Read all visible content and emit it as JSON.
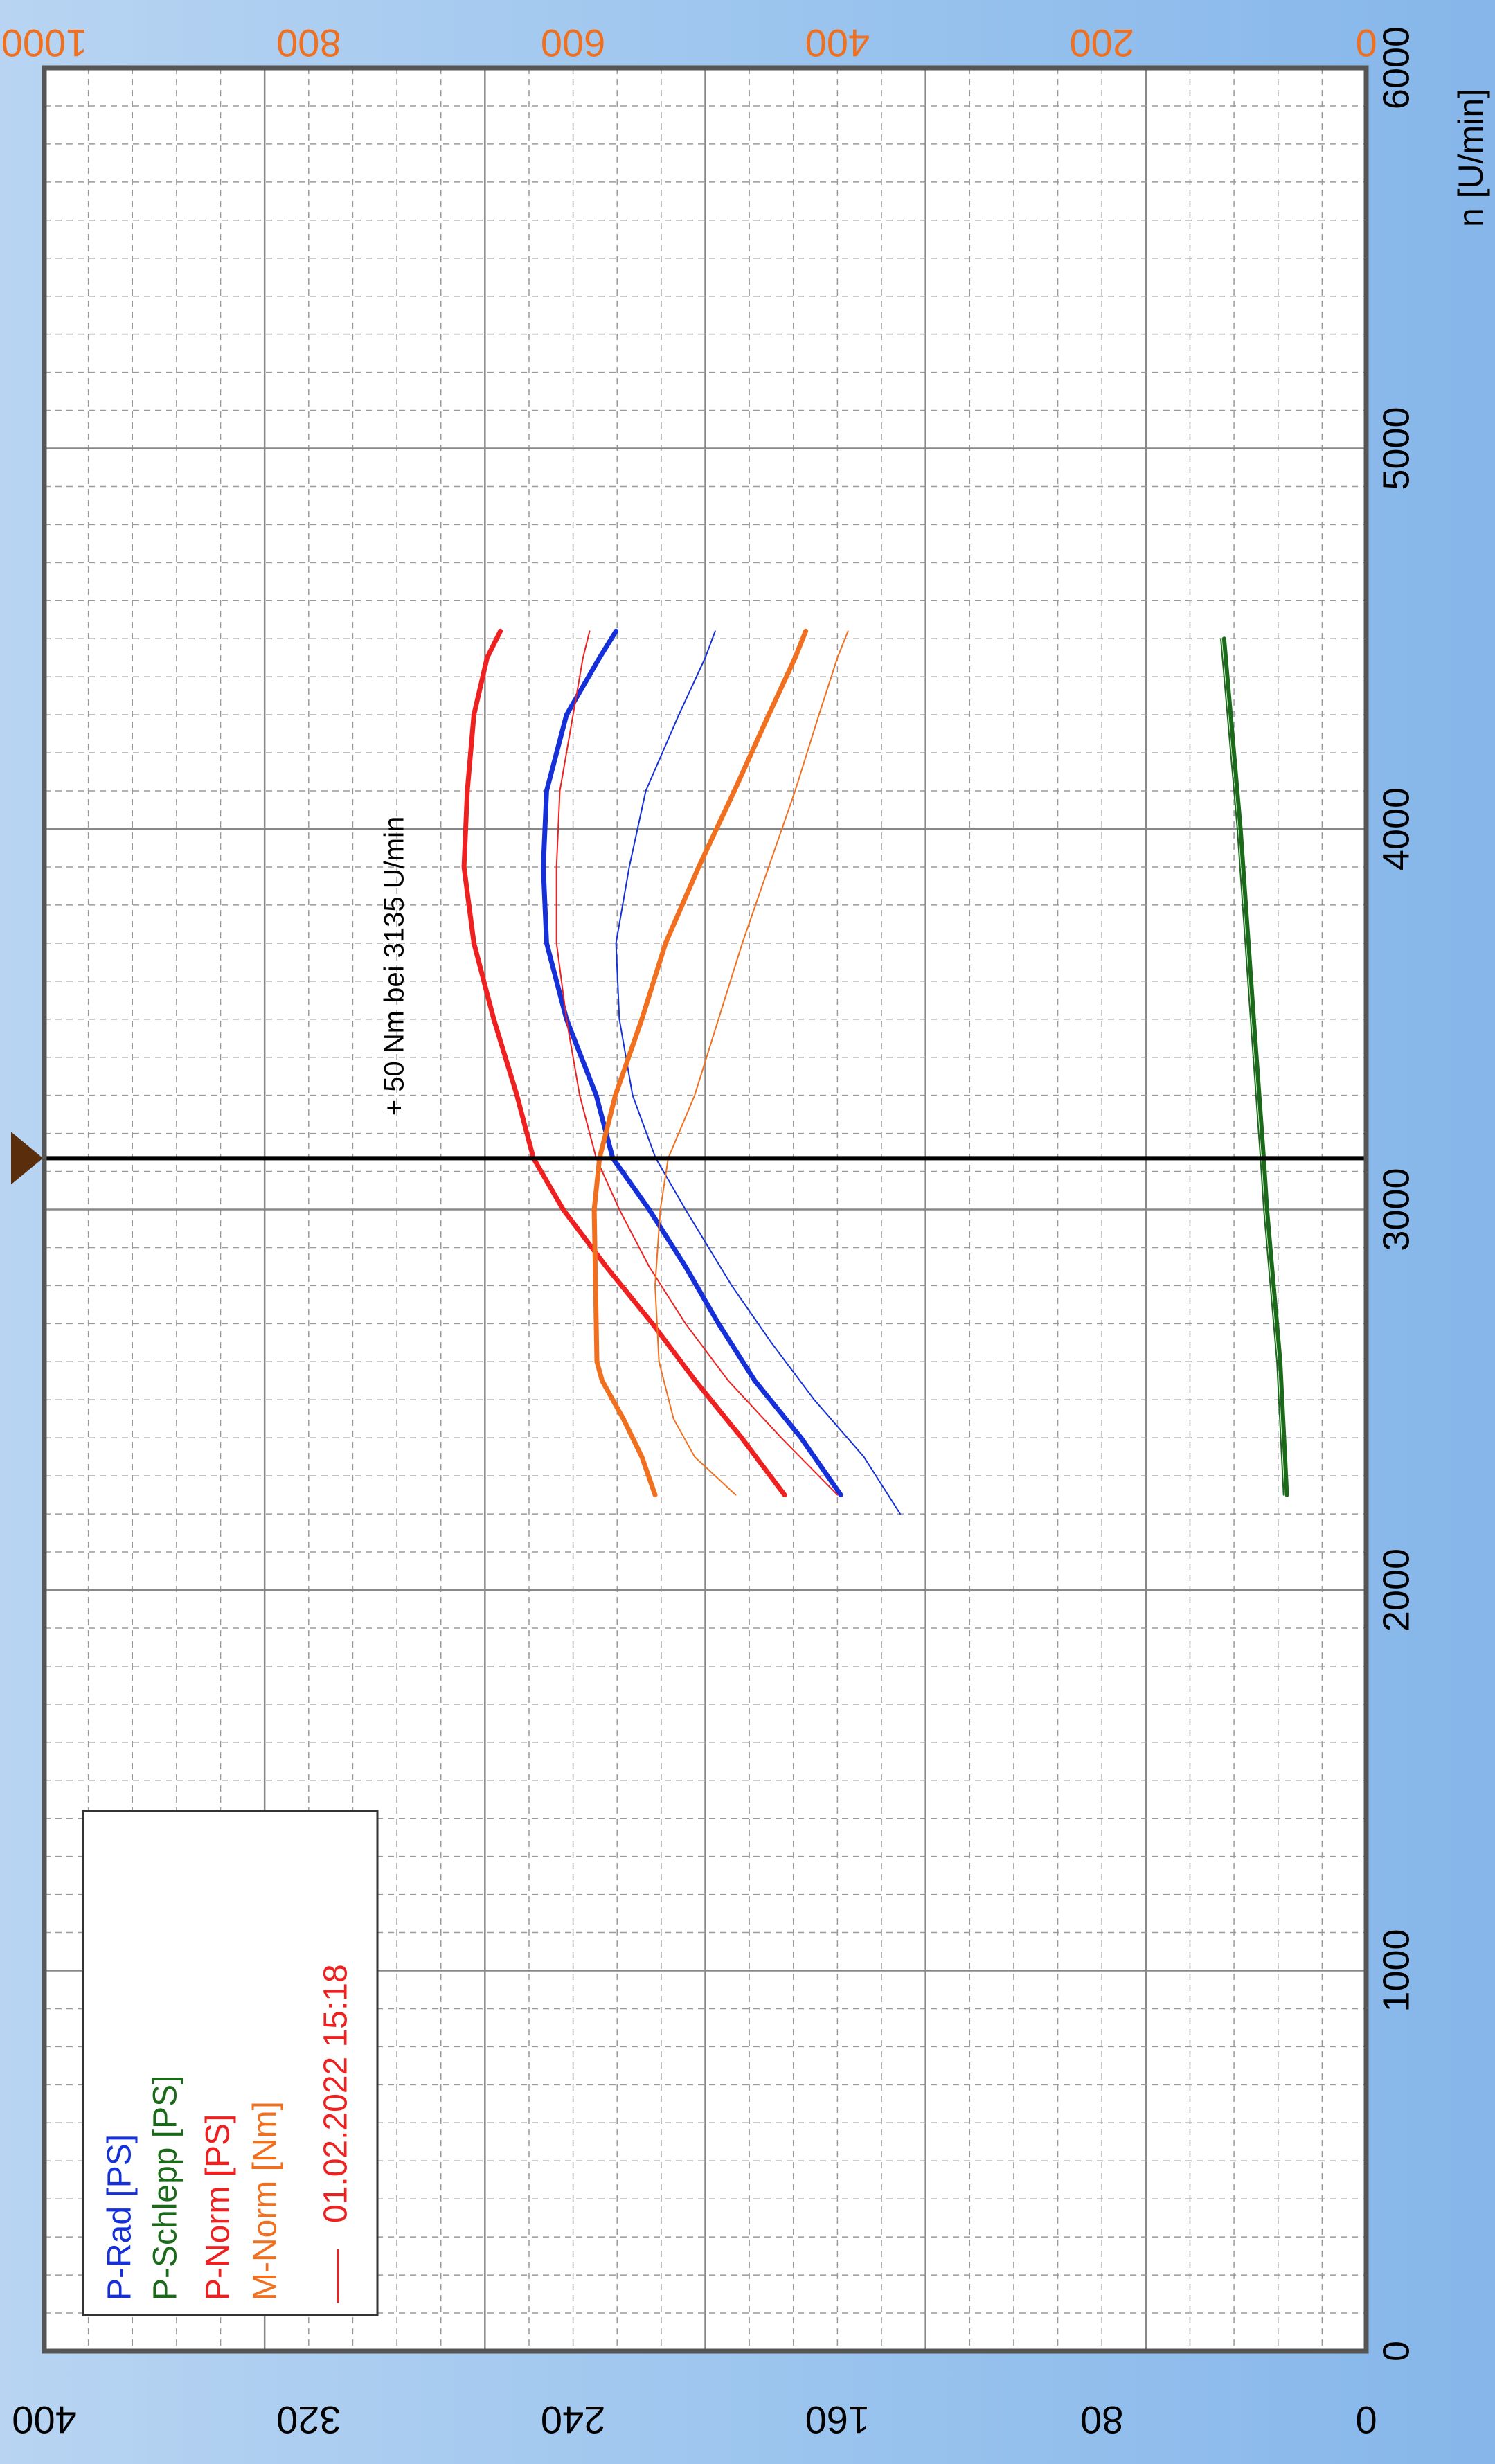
{
  "chart_data": {
    "type": "line",
    "xlabel": "n [U/min]",
    "x_ticks": [
      "0",
      "1000",
      "2000",
      "3000",
      "4000",
      "5000",
      "6000"
    ],
    "xlim": [
      0,
      6000
    ],
    "y_power_ticks": [
      "0",
      "80",
      "160",
      "240",
      "320",
      "400"
    ],
    "y_power_lim": [
      0,
      400
    ],
    "y_torque_ticks": [
      "0",
      "200",
      "400",
      "600",
      "800",
      "1000"
    ],
    "y_torque_lim": [
      0,
      1000
    ],
    "annotation": "+ 50 Nm bei 3135 U/min",
    "cursor_rpm": 3135,
    "grid": true,
    "legend_position": "bottom-left",
    "legend": {
      "entries": [
        {
          "label": "P-Rad [PS]",
          "color": "#1530d8"
        },
        {
          "label": "P-Schlepp [PS]",
          "color": "#1a6a1a"
        },
        {
          "label": "P-Norm [PS]",
          "color": "#ee2020"
        },
        {
          "label": "M-Norm [Nm]",
          "color": "#f07020"
        }
      ],
      "run_label": "01.02.2022 15:18",
      "run_color": "#ee2020"
    },
    "series": [
      {
        "label": "P-Rad [PS]",
        "axis": "power",
        "color": "#1530d8",
        "width": 7,
        "x": [
          2250,
          2400,
          2550,
          2700,
          2850,
          3000,
          3135,
          3300,
          3500,
          3700,
          3900,
          4100,
          4300,
          4450,
          4520
        ],
        "y": [
          159,
          171,
          185,
          196,
          206,
          217,
          228,
          233,
          242,
          248,
          249,
          248,
          242,
          232,
          227
        ]
      },
      {
        "label": "P-Rad [PS]",
        "axis": "power",
        "color": "#1530d8",
        "width": 2,
        "x": [
          2200,
          2350,
          2500,
          2650,
          2800,
          3000,
          3135,
          3300,
          3500,
          3700,
          3900,
          4100,
          4300,
          4450,
          4520
        ],
        "y": [
          141,
          152,
          167,
          180,
          192,
          206,
          215,
          222,
          226,
          227,
          223,
          218,
          208,
          200,
          197
        ]
      },
      {
        "label": "P-Schlepp [PS]",
        "axis": "power",
        "color": "#1a6a1a",
        "width": 6,
        "x": [
          2250,
          2600,
          3000,
          3135,
          3500,
          4000,
          4500
        ],
        "y": [
          24,
          26,
          30,
          31,
          34,
          38,
          43
        ]
      },
      {
        "label": "P-Schlepp [PS]",
        "axis": "power",
        "color": "#1a6a1a",
        "width": 2,
        "x": [
          2250,
          2600,
          3000,
          3135,
          3500,
          4000,
          4500
        ],
        "y": [
          25,
          27,
          31,
          32,
          35,
          39,
          44
        ]
      },
      {
        "label": "P-Norm [PS]",
        "axis": "power",
        "color": "#ee2020",
        "width": 7,
        "x": [
          2250,
          2400,
          2550,
          2700,
          2850,
          3000,
          3135,
          3300,
          3500,
          3700,
          3900,
          4100,
          4300,
          4450,
          4520
        ],
        "y": [
          176,
          189,
          203,
          216,
          230,
          243,
          252,
          257,
          264,
          270,
          273,
          272,
          270,
          266,
          262
        ]
      },
      {
        "label": "P-Norm [PS]",
        "axis": "power",
        "color": "#ee2020",
        "width": 2,
        "x": [
          2250,
          2400,
          2550,
          2700,
          2850,
          3000,
          3135,
          3300,
          3500,
          3700,
          3900,
          4100,
          4300,
          4450,
          4520
        ],
        "y": [
          160,
          177,
          193,
          206,
          217,
          226,
          233,
          238,
          242,
          245,
          245,
          244,
          240,
          237,
          235
        ]
      },
      {
        "label": "M-Norm [Nm]",
        "axis": "torque",
        "color": "#f07020",
        "width": 7,
        "x": [
          2250,
          2350,
          2450,
          2550,
          2600,
          3000,
          3135,
          3300,
          3500,
          3700,
          3900,
          4100,
          4300,
          4450,
          4520
        ],
        "y": [
          538,
          548,
          562,
          578,
          582,
          584,
          580,
          568,
          548,
          530,
          505,
          478,
          452,
          432,
          424
        ]
      },
      {
        "label": "M-Norm [Nm]",
        "axis": "torque",
        "color": "#f07020",
        "width": 2,
        "x": [
          2250,
          2350,
          2450,
          2600,
          2800,
          3000,
          3135,
          3300,
          3500,
          3700,
          3900,
          4100,
          4300,
          4450,
          4520
        ],
        "y": [
          477,
          508,
          524,
          535,
          538,
          534,
          528,
          508,
          490,
          472,
          452,
          432,
          414,
          400,
          392
        ]
      }
    ]
  }
}
